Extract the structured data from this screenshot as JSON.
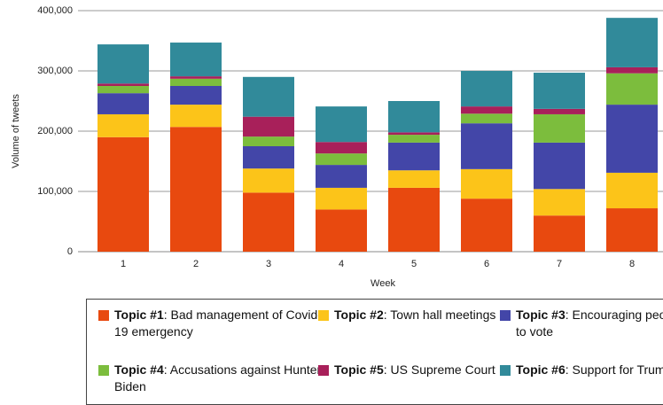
{
  "chart_data": {
    "type": "stacked_bar",
    "x_label": "Week",
    "y_label": "Volume of tweets",
    "categories": [
      "1",
      "2",
      "3",
      "4",
      "5",
      "6",
      "7",
      "8"
    ],
    "series": [
      {
        "name": "Topic #1",
        "description": ": Bad management of Covid-19 emergency",
        "color": "#e8490f",
        "values": [
          190000,
          207000,
          98000,
          70000,
          106000,
          88000,
          60000,
          72000
        ]
      },
      {
        "name": "Topic #2",
        "description": ": Town hall meetings",
        "color": "#fcc419",
        "values": [
          38000,
          37000,
          40000,
          36000,
          29000,
          49000,
          44000,
          59000
        ]
      },
      {
        "name": "Topic #3",
        "description": ": Encouraging people to vote",
        "color": "#4346a8",
        "values": [
          35000,
          31000,
          37000,
          38000,
          46000,
          76000,
          77000,
          113000
        ]
      },
      {
        "name": "Topic #4",
        "description": ": Accusations against Hunter Biden",
        "color": "#7cbd3d",
        "values": [
          12000,
          12000,
          16000,
          19000,
          13000,
          16000,
          47000,
          52000
        ]
      },
      {
        "name": "Topic #5",
        "description": ": US Supreme Court",
        "color": "#a8205a",
        "values": [
          4000,
          4000,
          33000,
          19000,
          4000,
          12000,
          9000,
          10000
        ]
      },
      {
        "name": "Topic #6",
        "description": ": Support for Trump",
        "color": "#318a9a",
        "values": [
          65000,
          56000,
          66000,
          59000,
          52000,
          59000,
          60000,
          82000
        ]
      }
    ],
    "ylim": [
      0,
      400000
    ],
    "yticks": [
      0,
      {
        "value": 100000,
        "label": "100,000"
      },
      {
        "value": 200000,
        "label": "200,000"
      },
      {
        "value": 300000,
        "label": "300,000"
      },
      {
        "value": 400000,
        "label": "400,000"
      }
    ],
    "grid": true
  }
}
